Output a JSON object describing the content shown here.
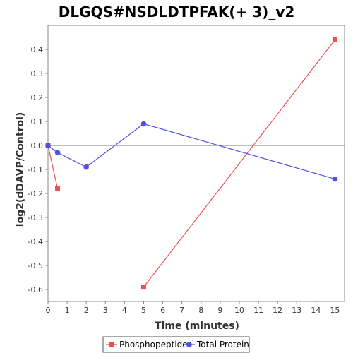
{
  "chart_data": {
    "type": "line",
    "title": "DLGQS#NSDLDTPFAK(+ 3)_v2",
    "xlabel": "Time (minutes)",
    "ylabel": "log2(dDAVP/Control)",
    "xlim": [
      0,
      15.5
    ],
    "ylim": [
      -0.65,
      0.5
    ],
    "x_ticks": [
      0,
      1,
      2,
      3,
      4,
      5,
      6,
      7,
      8,
      9,
      10,
      11,
      12,
      13,
      14,
      15
    ],
    "y_ticks": [
      -0.6,
      -0.5,
      -0.4,
      -0.3,
      -0.2,
      -0.1,
      0.0,
      0.1,
      0.2,
      0.3,
      0.4
    ],
    "y_tick_labels": [
      "-0.6",
      "-0.5",
      "-0.4",
      "-0.3",
      "-0.2",
      "-0.1",
      "0.0",
      "0.1",
      "0.2",
      "0.3",
      "0.4"
    ],
    "zero_line": true,
    "grid": false,
    "legend_position": "bottom",
    "series": [
      {
        "name": "Phosphopeptide",
        "color": "#e8514f",
        "marker": "square",
        "segments": [
          [
            [
              0,
              0.0
            ],
            [
              0.5,
              -0.18
            ]
          ],
          [
            [
              5,
              -0.59
            ],
            [
              15,
              0.44
            ]
          ]
        ]
      },
      {
        "name": "Total Protein",
        "color": "#5050e8",
        "marker": "circle",
        "segments": [
          [
            [
              0,
              0.0
            ],
            [
              0.5,
              -0.03
            ],
            [
              2,
              -0.09
            ],
            [
              5,
              0.09
            ],
            [
              15,
              -0.14
            ]
          ]
        ]
      }
    ]
  }
}
